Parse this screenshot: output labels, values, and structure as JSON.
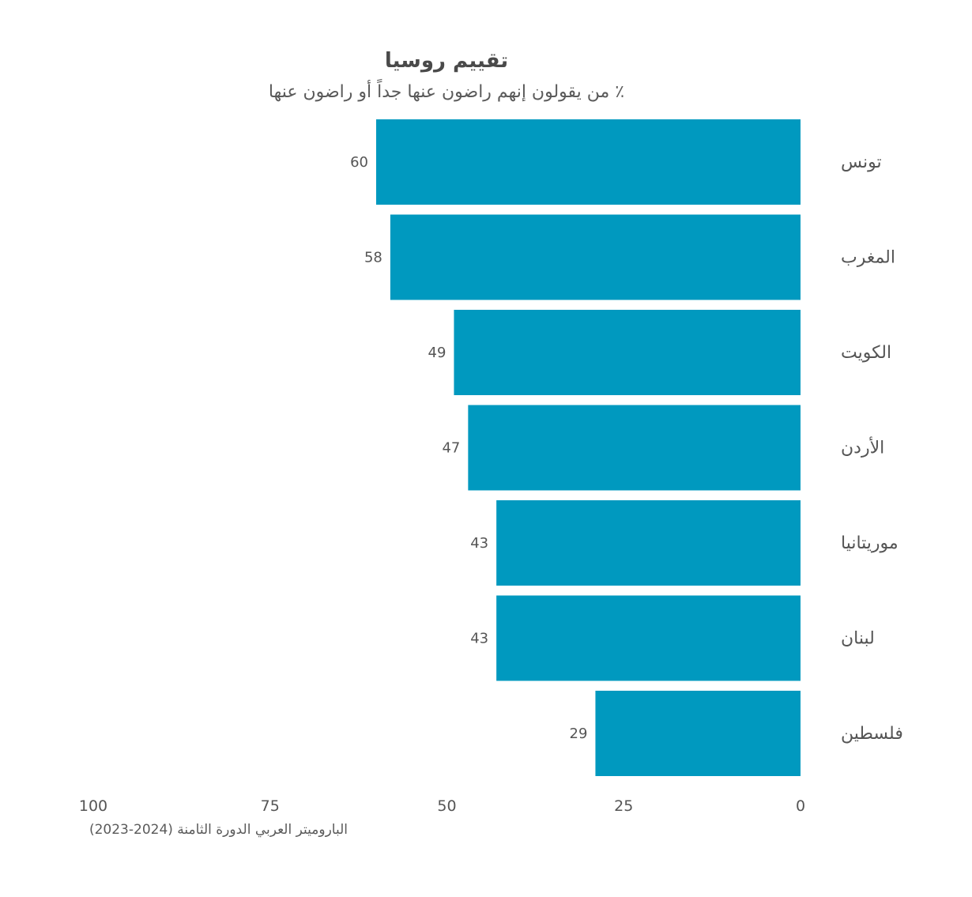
{
  "chart_data": {
    "type": "bar",
    "orientation": "horizontal",
    "title": "تقييم روسيا",
    "subtitle": "٪ من يقولون إنهم راضون عنها جداً أو راضون عنها",
    "categories": [
      "تونس",
      "المغرب",
      "الكويت",
      "الأردن",
      "موريتانيا",
      "لبنان",
      "فلسطين"
    ],
    "values": [
      60,
      58,
      49,
      47,
      43,
      43,
      29
    ],
    "data_labels": [
      "60",
      "58",
      "49",
      "47",
      "43",
      "43",
      "29"
    ],
    "xlim": [
      0,
      100
    ],
    "x_direction": "right-to-left",
    "x_ticks": [
      0,
      25,
      50,
      75,
      100
    ],
    "x_tick_labels": [
      "0",
      "25",
      "50",
      "75",
      "100"
    ],
    "grid": false,
    "bar_color": "#0099bf"
  },
  "source": "الباروميتر العربي الدورة الثامنة (2024-2023)"
}
